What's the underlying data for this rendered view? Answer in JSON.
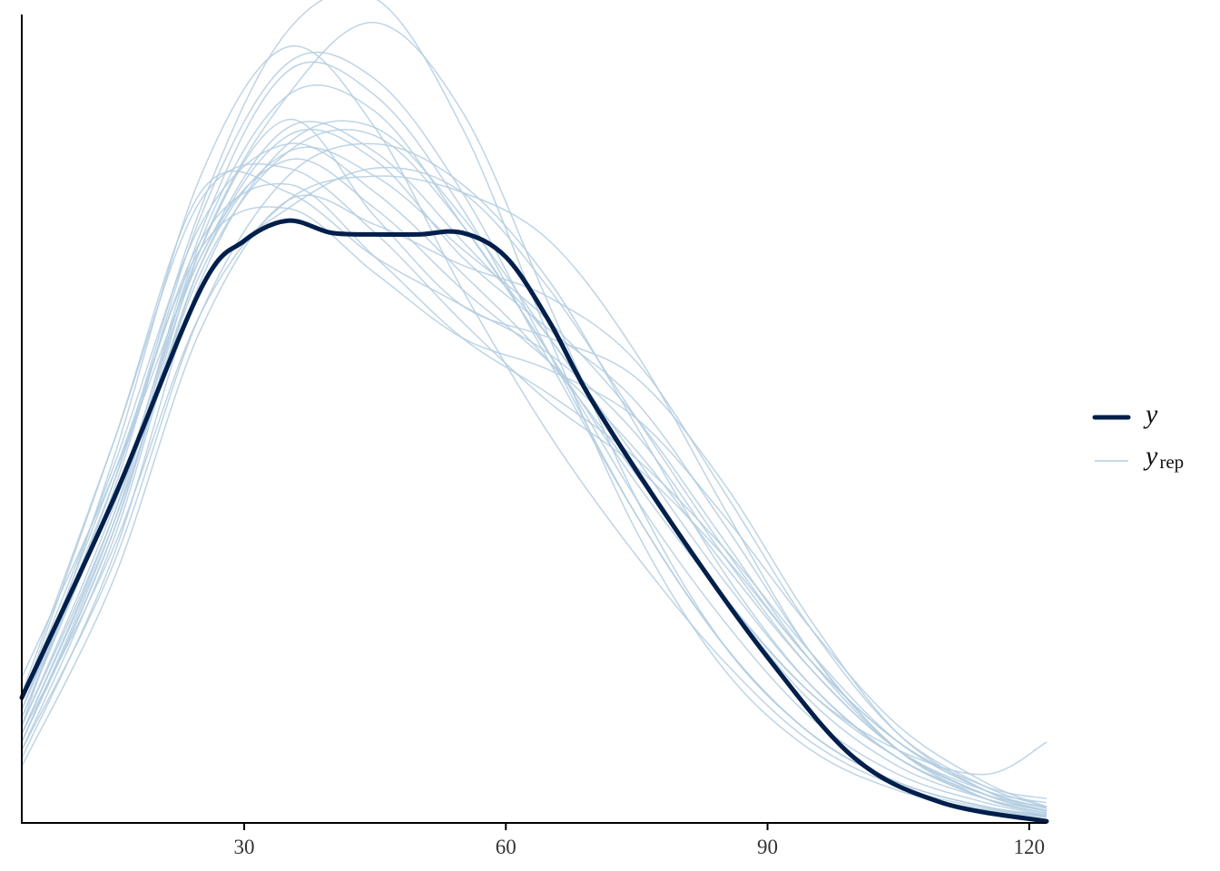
{
  "chart_data": {
    "type": "line",
    "title": "",
    "xlabel": "",
    "ylabel": "",
    "xlim": [
      4.5,
      122
    ],
    "ylim": [
      0,
      1
    ],
    "xticks": [
      30,
      60,
      90,
      120
    ],
    "xtick_labels": [
      "30",
      "60",
      "90",
      "120"
    ],
    "y_axis_labels_shown": false,
    "grid": false,
    "legend_position": "right",
    "legend": [
      {
        "name": "y",
        "subscript": "",
        "color": "#011f4b",
        "style": "thick"
      },
      {
        "name": "y",
        "subscript": "rep",
        "color": "#b3cde0",
        "style": "thin"
      }
    ],
    "colors": {
      "y": "#011f4b",
      "yrep": "#b3cde0"
    },
    "series_y": {
      "name": "y",
      "x": [
        4.5,
        15,
        25,
        30,
        35,
        40,
        45,
        50,
        55,
        60,
        65,
        70,
        80,
        90,
        100,
        110,
        122
      ],
      "values": [
        0.155,
        0.4,
        0.66,
        0.72,
        0.745,
        0.73,
        0.728,
        0.728,
        0.73,
        0.7,
        0.62,
        0.52,
        0.355,
        0.205,
        0.08,
        0.025,
        0.002
      ]
    },
    "series_yrep": [
      {
        "x": [
          4.5,
          15,
          25,
          35,
          45,
          55,
          65,
          75,
          85,
          95,
          105,
          115,
          122
        ],
        "values": [
          0.18,
          0.43,
          0.7,
          0.86,
          0.83,
          0.72,
          0.6,
          0.44,
          0.28,
          0.15,
          0.07,
          0.03,
          0.015
        ]
      },
      {
        "x": [
          4.5,
          15,
          25,
          35,
          45,
          55,
          65,
          75,
          85,
          95,
          105,
          115,
          122
        ],
        "values": [
          0.1,
          0.37,
          0.72,
          0.9,
          0.88,
          0.74,
          0.58,
          0.4,
          0.25,
          0.13,
          0.06,
          0.025,
          0.01
        ]
      },
      {
        "x": [
          4.5,
          15,
          25,
          35,
          45,
          55,
          65,
          75,
          85,
          95,
          105,
          115,
          122
        ],
        "values": [
          0.12,
          0.45,
          0.8,
          0.96,
          0.86,
          0.66,
          0.48,
          0.33,
          0.2,
          0.1,
          0.045,
          0.018,
          0.008
        ]
      },
      {
        "x": [
          4.5,
          15,
          25,
          35,
          45,
          55,
          65,
          75,
          85,
          95,
          105,
          115,
          122
        ],
        "values": [
          0.15,
          0.47,
          0.78,
          0.78,
          0.7,
          0.64,
          0.58,
          0.48,
          0.33,
          0.19,
          0.09,
          0.035,
          0.015
        ]
      },
      {
        "x": [
          4.5,
          15,
          25,
          35,
          45,
          55,
          65,
          75,
          85,
          95,
          105,
          115,
          122
        ],
        "values": [
          0.08,
          0.33,
          0.67,
          0.84,
          0.86,
          0.75,
          0.6,
          0.45,
          0.3,
          0.17,
          0.08,
          0.03,
          0.012
        ]
      },
      {
        "x": [
          4.5,
          15,
          25,
          35,
          45,
          55,
          65,
          75,
          85,
          95,
          105,
          115,
          122
        ],
        "values": [
          0.11,
          0.38,
          0.73,
          0.93,
          0.9,
          0.76,
          0.57,
          0.38,
          0.22,
          0.11,
          0.05,
          0.02,
          0.008
        ]
      },
      {
        "x": [
          4.5,
          15,
          25,
          35,
          45,
          55,
          65,
          75,
          85,
          95,
          105,
          115,
          122
        ],
        "values": [
          0.14,
          0.4,
          0.66,
          0.76,
          0.81,
          0.78,
          0.66,
          0.5,
          0.34,
          0.2,
          0.1,
          0.04,
          0.018
        ]
      },
      {
        "x": [
          4.5,
          15,
          25,
          35,
          45,
          55,
          65,
          75,
          85,
          95,
          105,
          115,
          122
        ],
        "values": [
          0.09,
          0.35,
          0.69,
          0.85,
          0.82,
          0.7,
          0.61,
          0.52,
          0.37,
          0.21,
          0.09,
          0.035,
          0.014
        ]
      },
      {
        "x": [
          4.5,
          15,
          25,
          35,
          45,
          55,
          65,
          75,
          85,
          95,
          105,
          115,
          122
        ],
        "values": [
          0.13,
          0.42,
          0.76,
          0.98,
          1.02,
          0.86,
          0.6,
          0.36,
          0.19,
          0.09,
          0.04,
          0.016,
          0.007
        ]
      },
      {
        "x": [
          4.5,
          15,
          25,
          35,
          45,
          55,
          65,
          75,
          85,
          95,
          105,
          115,
          122
        ],
        "values": [
          0.1,
          0.36,
          0.71,
          0.9,
          0.99,
          0.88,
          0.64,
          0.4,
          0.22,
          0.11,
          0.05,
          0.02,
          0.009
        ]
      },
      {
        "x": [
          4.5,
          15,
          25,
          35,
          45,
          55,
          65,
          75,
          85,
          95,
          105,
          115,
          122
        ],
        "values": [
          0.14,
          0.43,
          0.71,
          0.76,
          0.68,
          0.6,
          0.56,
          0.5,
          0.38,
          0.24,
          0.12,
          0.05,
          0.02
        ]
      },
      {
        "x": [
          4.5,
          15,
          25,
          35,
          45,
          55,
          65,
          75,
          85,
          95,
          105,
          115,
          122
        ],
        "values": [
          0.16,
          0.47,
          0.77,
          0.81,
          0.73,
          0.62,
          0.52,
          0.44,
          0.33,
          0.2,
          0.1,
          0.045,
          0.03
        ]
      },
      {
        "x": [
          4.5,
          15,
          25,
          35,
          45,
          55,
          65,
          75,
          85,
          95,
          105,
          115,
          122
        ],
        "values": [
          0.11,
          0.34,
          0.63,
          0.77,
          0.8,
          0.78,
          0.72,
          0.58,
          0.39,
          0.21,
          0.09,
          0.03,
          0.012
        ]
      },
      {
        "x": [
          4.5,
          15,
          25,
          35,
          45,
          55,
          65,
          75,
          85,
          95,
          105,
          115,
          122
        ],
        "values": [
          0.12,
          0.39,
          0.71,
          0.87,
          0.75,
          0.64,
          0.6,
          0.55,
          0.42,
          0.25,
          0.11,
          0.04,
          0.015
        ]
      },
      {
        "x": [
          4.5,
          15,
          25,
          35,
          45,
          55,
          65,
          75,
          85,
          95,
          105,
          115,
          122
        ],
        "values": [
          0.09,
          0.32,
          0.63,
          0.8,
          0.84,
          0.79,
          0.67,
          0.49,
          0.31,
          0.17,
          0.08,
          0.035,
          0.02
        ]
      },
      {
        "x": [
          4.5,
          15,
          25,
          35,
          45,
          55,
          65,
          75,
          85,
          95,
          105,
          115,
          122
        ],
        "values": [
          0.15,
          0.44,
          0.74,
          0.84,
          0.78,
          0.68,
          0.57,
          0.43,
          0.28,
          0.16,
          0.09,
          0.06,
          0.1
        ]
      },
      {
        "x": [
          4.5,
          15,
          25,
          35,
          45,
          55,
          65,
          75,
          85,
          95,
          105,
          115,
          122
        ],
        "values": [
          0.07,
          0.3,
          0.61,
          0.77,
          0.74,
          0.69,
          0.65,
          0.57,
          0.41,
          0.24,
          0.11,
          0.045,
          0.02
        ]
      },
      {
        "x": [
          4.5,
          15,
          25,
          35,
          45,
          55,
          65,
          75,
          85,
          95,
          105,
          115,
          122
        ],
        "values": [
          0.13,
          0.41,
          0.75,
          0.94,
          0.92,
          0.78,
          0.58,
          0.38,
          0.22,
          0.11,
          0.05,
          0.02,
          0.01
        ]
      },
      {
        "x": [
          4.5,
          15,
          25,
          35,
          45,
          55,
          65,
          75,
          85,
          95,
          105,
          115,
          122
        ],
        "values": [
          0.1,
          0.36,
          0.69,
          0.83,
          0.8,
          0.71,
          0.62,
          0.5,
          0.35,
          0.2,
          0.09,
          0.035,
          0.015
        ]
      },
      {
        "x": [
          4.5,
          15,
          25,
          35,
          45,
          55,
          65,
          75,
          85,
          95,
          105,
          115,
          122
        ],
        "values": [
          0.12,
          0.38,
          0.7,
          0.82,
          0.76,
          0.66,
          0.57,
          0.46,
          0.32,
          0.19,
          0.09,
          0.04,
          0.025
        ]
      },
      {
        "x": [
          4.5,
          15,
          25,
          35,
          45,
          55,
          65,
          75,
          85,
          95,
          105,
          115,
          122
        ],
        "values": [
          0.14,
          0.42,
          0.72,
          0.79,
          0.7,
          0.6,
          0.53,
          0.45,
          0.34,
          0.21,
          0.1,
          0.04,
          0.018
        ]
      },
      {
        "x": [
          4.5,
          15,
          25,
          35,
          45,
          55,
          65,
          75,
          85,
          95,
          105,
          115,
          122
        ],
        "values": [
          0.11,
          0.37,
          0.68,
          0.83,
          0.85,
          0.74,
          0.58,
          0.42,
          0.28,
          0.16,
          0.08,
          0.03,
          0.012
        ]
      }
    ]
  }
}
